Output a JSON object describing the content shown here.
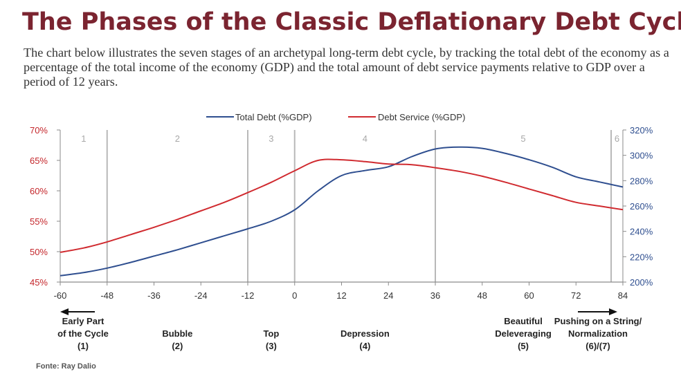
{
  "header": {
    "title": "The Phases of the Classic Deflationary Debt Cycle",
    "subtitle": "The chart below illustrates the seven stages of an archetypal long-term debt cycle, by tracking the total debt of the economy as a percentage of the total income of the economy (GDP) and the total amount of debt service payments relative to GDP over a period of 12 years."
  },
  "chart_data": {
    "type": "line",
    "title": "The Phases of the Classic Deflationary Debt Cycle",
    "x_ticks": [
      "-60",
      "-48",
      "-36",
      "-24",
      "-12",
      "0",
      "12",
      "24",
      "36",
      "48",
      "60",
      "72",
      "84"
    ],
    "xlim": [
      -60,
      84
    ],
    "left_axis": {
      "ticks": [
        "70%",
        "65%",
        "60%",
        "55%",
        "50%",
        "45%"
      ],
      "ylim": [
        45,
        70
      ]
    },
    "right_axis": {
      "ticks": [
        "320%",
        "300%",
        "280%",
        "260%",
        "240%",
        "220%",
        "200%"
      ],
      "ylim": [
        200,
        320
      ]
    },
    "phase_dividers": [
      -48,
      -12,
      0,
      36,
      81
    ],
    "phase_numbers": [
      {
        "label": "1",
        "x": -54
      },
      {
        "label": "2",
        "x": -30
      },
      {
        "label": "3",
        "x": -6
      },
      {
        "label": "4",
        "x": 18
      },
      {
        "label": "5",
        "x": 58.5
      },
      {
        "label": "6",
        "x": 82.5
      }
    ],
    "series": [
      {
        "name": "Total Debt (%GDP)",
        "axis": "right",
        "color": "#2e4e8f",
        "x": [
          -60,
          -54,
          -48,
          -42,
          -36,
          -30,
          -24,
          -18,
          -12,
          -6,
          0,
          6,
          12,
          18,
          24,
          30,
          36,
          42,
          48,
          54,
          60,
          66,
          72,
          78,
          84
        ],
        "y": [
          205,
          207.5,
          211,
          215.5,
          220.5,
          225.5,
          231,
          236.5,
          242,
          248,
          257,
          272,
          284,
          288,
          291,
          299,
          305,
          306.5,
          305.5,
          301.5,
          296.5,
          290.5,
          283,
          279,
          275
        ]
      },
      {
        "name": "Debt Service (%GDP)",
        "axis": "left",
        "color": "#d02a2f",
        "x": [
          -60,
          -54,
          -48,
          -42,
          -36,
          -30,
          -24,
          -18,
          -12,
          -6,
          0,
          6,
          12,
          18,
          24,
          30,
          36,
          42,
          48,
          54,
          60,
          66,
          72,
          78,
          84
        ],
        "y": [
          49.9,
          50.6,
          51.6,
          52.8,
          54.0,
          55.3,
          56.7,
          58.1,
          59.7,
          61.4,
          63.3,
          65.0,
          65.1,
          64.8,
          64.4,
          64.3,
          63.8,
          63.2,
          62.4,
          61.4,
          60.3,
          59.2,
          58.1,
          57.5,
          56.9
        ]
      }
    ]
  },
  "phase_labels": [
    {
      "name": "Early Part\nof the Cycle\n(1)",
      "x": -60
    },
    {
      "name": "Bubble\n(2)",
      "x": -30
    },
    {
      "name": "Top\n(3)",
      "x": -6
    },
    {
      "name": "Depression\n(4)",
      "x": 18
    },
    {
      "name": "Beautiful\nDeleveraging\n(5)",
      "x": 58.5
    },
    {
      "name": "Pushing on a String/\nNormalization\n(6)/(7)",
      "x": 84
    }
  ],
  "source": "Fonte: Ray Dalio"
}
